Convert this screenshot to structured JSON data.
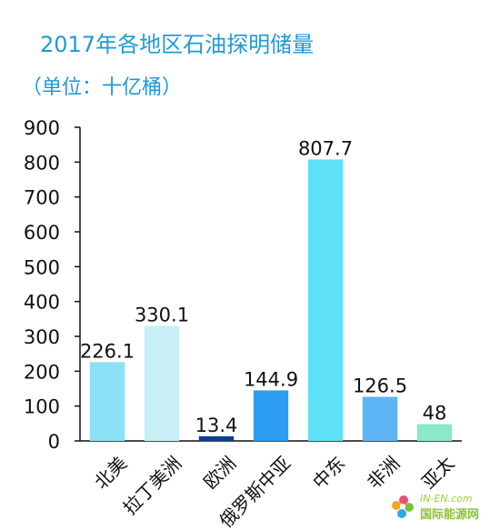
{
  "chart_data": {
    "type": "bar",
    "title": "2017年各地区石油探明储量",
    "subtitle": "（单位：十亿桶）",
    "categories": [
      "北美",
      "拉丁美洲",
      "欧洲",
      "俄罗斯中亚",
      "中东",
      "非洲",
      "亚太"
    ],
    "values": [
      226.1,
      330.1,
      13.4,
      144.9,
      807.7,
      126.5,
      48
    ],
    "value_labels": [
      "226.1",
      "330.1",
      "13.4",
      "144.9",
      "807.7",
      "126.5",
      "48"
    ],
    "colors": [
      "#8be0f5",
      "#c8eef6",
      "#0b3f8f",
      "#2c9df0",
      "#5ee0f5",
      "#5cb4f5",
      "#8be8c8"
    ],
    "yticks": [
      "0",
      "100",
      "200",
      "300",
      "400",
      "500",
      "600",
      "700",
      "800",
      "900"
    ],
    "ylim": [
      0,
      900
    ],
    "grid": false,
    "legend": "none"
  },
  "watermark": {
    "text1": "IN-EN.com",
    "text2": "国际能源网"
  }
}
